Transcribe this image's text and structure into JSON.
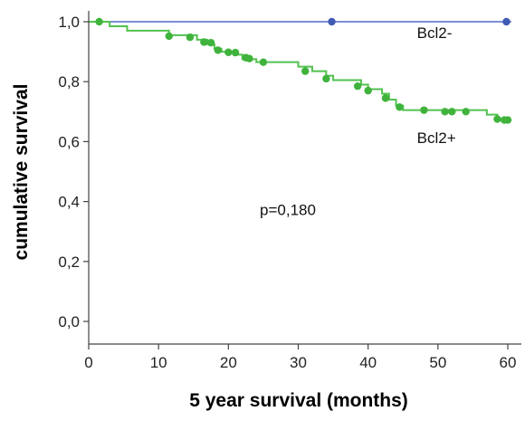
{
  "chart_data": {
    "type": "line",
    "title": "",
    "xlabel": "5 year survival (months)",
    "ylabel": "cumulative survival",
    "xlim": [
      0,
      62
    ],
    "ylim": [
      -0.05,
      1.03
    ],
    "x_ticks": [
      0,
      10,
      20,
      30,
      40,
      50,
      60
    ],
    "x_tick_labels": [
      "0",
      "10",
      "20",
      "30",
      "40",
      "50",
      "60"
    ],
    "y_ticks": [
      0.0,
      0.2,
      0.4,
      0.6,
      0.8,
      1.0
    ],
    "y_tick_labels": [
      "0,0",
      "0,2",
      "0,4",
      "0,6",
      "0,8",
      "1,0"
    ],
    "grid": false,
    "annotations": [
      {
        "text": "Bcl2-",
        "x": 47,
        "y": 0.945
      },
      {
        "text": "Bcl2+",
        "x": 47,
        "y": 0.595
      },
      {
        "text": "p=0,180",
        "x": 24.5,
        "y": 0.355
      }
    ],
    "series": [
      {
        "name": "Bcl2-",
        "color": "#7c8fd6",
        "marker_color": "#3f5bb5",
        "step": [
          [
            0,
            1.0
          ],
          [
            60.5,
            1.0
          ]
        ],
        "censored": [
          [
            34.8,
            1.0
          ],
          [
            59.8,
            1.0
          ]
        ]
      },
      {
        "name": "Bcl2+",
        "color": "#52c24f",
        "marker_color": "#3fb33c",
        "step": [
          [
            0,
            1.0
          ],
          [
            3,
            0.985
          ],
          [
            5.5,
            0.97
          ],
          [
            11.5,
            0.955
          ],
          [
            15.5,
            0.94
          ],
          [
            17,
            0.925
          ],
          [
            18,
            0.91
          ],
          [
            19,
            0.9
          ],
          [
            21,
            0.89
          ],
          [
            22,
            0.875
          ],
          [
            24,
            0.865
          ],
          [
            30,
            0.85
          ],
          [
            32,
            0.835
          ],
          [
            34,
            0.82
          ],
          [
            35,
            0.805
          ],
          [
            39,
            0.79
          ],
          [
            40,
            0.775
          ],
          [
            42,
            0.76
          ],
          [
            43,
            0.74
          ],
          [
            44,
            0.72
          ],
          [
            45,
            0.705
          ],
          [
            57,
            0.69
          ],
          [
            58.5,
            0.675
          ],
          [
            60.5,
            0.675
          ]
        ],
        "censored": [
          [
            1.5,
            1.0
          ],
          [
            11.5,
            0.952
          ],
          [
            14.5,
            0.948
          ],
          [
            16.5,
            0.932
          ],
          [
            17.5,
            0.93
          ],
          [
            18.5,
            0.905
          ],
          [
            20,
            0.898
          ],
          [
            21,
            0.897
          ],
          [
            22.5,
            0.88
          ],
          [
            23,
            0.877
          ],
          [
            25,
            0.865
          ],
          [
            31,
            0.835
          ],
          [
            34,
            0.81
          ],
          [
            38.5,
            0.785
          ],
          [
            40,
            0.77
          ],
          [
            42.5,
            0.745
          ],
          [
            44.5,
            0.715
          ],
          [
            48,
            0.705
          ],
          [
            51,
            0.7
          ],
          [
            52,
            0.7
          ],
          [
            54,
            0.7
          ],
          [
            58.5,
            0.675
          ],
          [
            59.5,
            0.672
          ],
          [
            60,
            0.672
          ]
        ]
      }
    ]
  }
}
